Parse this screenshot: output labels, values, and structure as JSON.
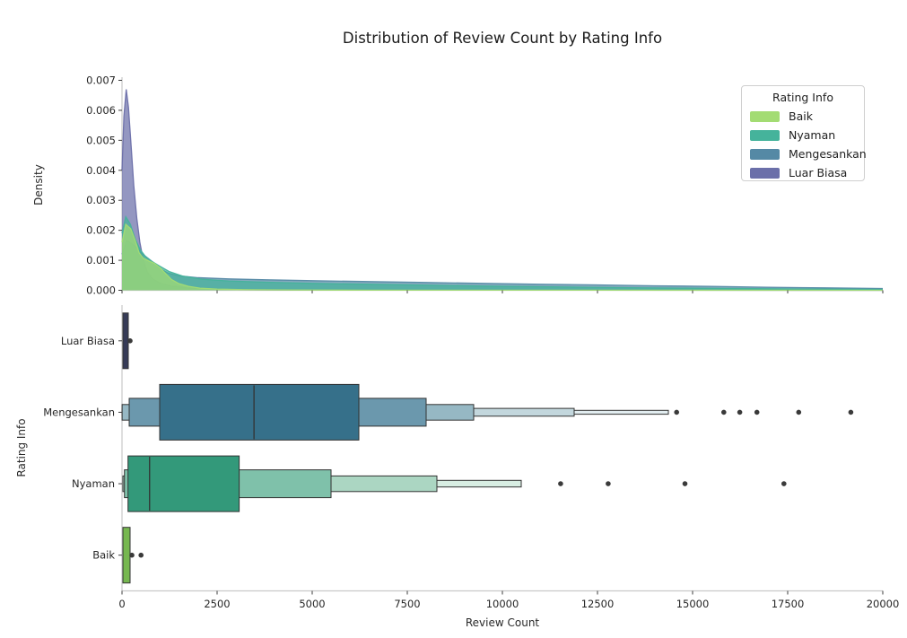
{
  "title": "Distribution of Review Count by Rating Info",
  "style": {
    "spine_color": "#c9c9c9",
    "tick_color": "#3c3c3c",
    "text_color": "#262626",
    "box_edge_color": "#333333",
    "outlier_color": "#3a3a3a"
  },
  "chart_data": [
    {
      "type": "area",
      "subtype": "kde-density",
      "ylabel": "Density",
      "xlim": [
        0,
        20000
      ],
      "ylim": [
        0,
        0.007
      ],
      "ytick_labels": [
        "0.000",
        "0.001",
        "0.002",
        "0.003",
        "0.004",
        "0.005",
        "0.006",
        "0.007"
      ],
      "xticks": [
        0,
        2500,
        5000,
        7500,
        10000,
        12500,
        15000,
        17500,
        20000
      ],
      "legend": {
        "title": "Rating Info",
        "entries": [
          {
            "label": "Baik",
            "color": "#a3dc73"
          },
          {
            "label": "Nyaman",
            "color": "#45b39b"
          },
          {
            "label": "Mengesankan",
            "color": "#5589a5"
          },
          {
            "label": "Luar Biasa",
            "color": "#6b6fa9"
          }
        ]
      },
      "series": [
        {
          "name": "Luar Biasa",
          "color": "#6b6fa9",
          "points": [
            [
              0,
              0.004
            ],
            [
              50,
              0.0058
            ],
            [
              110,
              0.0067
            ],
            [
              170,
              0.0061
            ],
            [
              240,
              0.0048
            ],
            [
              310,
              0.0035
            ],
            [
              390,
              0.0024
            ],
            [
              470,
              0.0016
            ],
            [
              560,
              0.001
            ],
            [
              670,
              0.0006
            ],
            [
              800,
              0.00038
            ],
            [
              1000,
              0.00024
            ],
            [
              1300,
              0.00014
            ],
            [
              1700,
              8e-05
            ],
            [
              2200,
              5e-05
            ],
            [
              3000,
              2e-05
            ],
            [
              4500,
              1e-05
            ],
            [
              7000,
              4e-06
            ],
            [
              20000,
              2e-06
            ]
          ]
        },
        {
          "name": "Mengesankan",
          "color": "#5589a5",
          "points": [
            [
              0,
              0.0012
            ],
            [
              130,
              0.00165
            ],
            [
              260,
              0.00155
            ],
            [
              400,
              0.0014
            ],
            [
              550,
              0.0012
            ],
            [
              700,
              0.00105
            ],
            [
              850,
              0.0009
            ],
            [
              1000,
              0.00072
            ],
            [
              1200,
              0.00058
            ],
            [
              1500,
              0.00048
            ],
            [
              2000,
              0.00042
            ],
            [
              2800,
              0.00038
            ],
            [
              3800,
              0.00035
            ],
            [
              5000,
              0.00032
            ],
            [
              6500,
              0.00029
            ],
            [
              8000,
              0.00026
            ],
            [
              9500,
              0.00023
            ],
            [
              11000,
              0.0002
            ],
            [
              12500,
              0.00018
            ],
            [
              14000,
              0.00015
            ],
            [
              15500,
              0.00013
            ],
            [
              17000,
              0.0001
            ],
            [
              18500,
              8e-05
            ],
            [
              20000,
              6e-05
            ]
          ]
        },
        {
          "name": "Nyaman",
          "color": "#45b39b",
          "points": [
            [
              0,
              0.0019
            ],
            [
              100,
              0.00245
            ],
            [
              220,
              0.0022
            ],
            [
              350,
              0.0017
            ],
            [
              480,
              0.00135
            ],
            [
              620,
              0.00112
            ],
            [
              800,
              0.00095
            ],
            [
              1000,
              0.0008
            ],
            [
              1250,
              0.00062
            ],
            [
              1600,
              0.00047
            ],
            [
              2100,
              0.00037
            ],
            [
              2800,
              0.00031
            ],
            [
              3800,
              0.00027
            ],
            [
              5000,
              0.00023
            ],
            [
              6500,
              0.0002
            ],
            [
              8000,
              0.00017
            ],
            [
              9500,
              0.00014
            ],
            [
              11000,
              0.00012
            ],
            [
              13000,
              9e-05
            ],
            [
              15000,
              7e-05
            ],
            [
              17000,
              5e-05
            ],
            [
              19000,
              3.5e-05
            ],
            [
              20000,
              3e-05
            ]
          ]
        },
        {
          "name": "Baik",
          "color": "#a3dc73",
          "points": [
            [
              0,
              0.0016
            ],
            [
              100,
              0.0022
            ],
            [
              230,
              0.00205
            ],
            [
              350,
              0.00165
            ],
            [
              450,
              0.00125
            ],
            [
              560,
              0.00107
            ],
            [
              700,
              0.00098
            ],
            [
              850,
              0.0009
            ],
            [
              1000,
              0.00075
            ],
            [
              1150,
              0.00055
            ],
            [
              1300,
              0.00036
            ],
            [
              1500,
              0.00022
            ],
            [
              1750,
              0.00013
            ],
            [
              2050,
              7e-05
            ],
            [
              2500,
              4e-05
            ],
            [
              3200,
              2e-05
            ],
            [
              4500,
              1e-05
            ],
            [
              6500,
              4e-06
            ],
            [
              20000,
              1e-06
            ]
          ]
        }
      ]
    },
    {
      "type": "boxen",
      "xlabel": "Review Count",
      "ylabel": "Rating Info",
      "xlim": [
        0,
        20000
      ],
      "xticks": [
        0,
        2500,
        5000,
        7500,
        10000,
        12500,
        15000,
        17500,
        20000
      ],
      "xtick_labels": [
        "0",
        "2500",
        "5000",
        "7500",
        "10000",
        "12500",
        "15000",
        "17500",
        "20000"
      ],
      "categories": [
        {
          "name": "Luar Biasa",
          "boxes": [
            {
              "lo": 24,
              "hi": 165,
              "h": 1.0
            }
          ],
          "colors": [
            "#363b57"
          ],
          "median": null,
          "outliers": [
            212
          ]
        },
        {
          "name": "Mengesankan",
          "boxes": [
            {
              "lo": 8,
              "hi": 14363,
              "h": 0.07
            },
            {
              "lo": 8,
              "hi": 11887,
              "h": 0.14
            },
            {
              "lo": 2,
              "hi": 9245,
              "h": 0.28
            },
            {
              "lo": 189,
              "hi": 7995,
              "h": 0.5
            },
            {
              "lo": 990,
              "hi": 6226,
              "h": 1.0
            }
          ],
          "colors": [
            "#e2edf0",
            "#c3d7dd",
            "#96b8c4",
            "#6b98ad",
            "#36708a"
          ],
          "median": 3470,
          "outliers": [
            14580,
            15820,
            16240,
            16690,
            17790,
            19160
          ]
        },
        {
          "name": "Nyaman",
          "boxes": [
            {
              "lo": 24,
              "hi": 10495,
              "h": 0.12
            },
            {
              "lo": 24,
              "hi": 8278,
              "h": 0.28
            },
            {
              "lo": 64,
              "hi": 5495,
              "h": 0.5
            },
            {
              "lo": 158,
              "hi": 3080,
              "h": 1.0
            }
          ],
          "colors": [
            "#d8eee3",
            "#abd6c2",
            "#7fc1aa",
            "#33997a"
          ],
          "median": 725,
          "outliers": [
            11530,
            12780,
            14800,
            17400
          ]
        },
        {
          "name": "Baik",
          "boxes": [
            {
              "lo": 24,
              "hi": 212,
              "h": 1.0
            }
          ],
          "colors": [
            "#76b750"
          ],
          "median": null,
          "outliers": [
            260,
            500
          ]
        }
      ]
    }
  ]
}
